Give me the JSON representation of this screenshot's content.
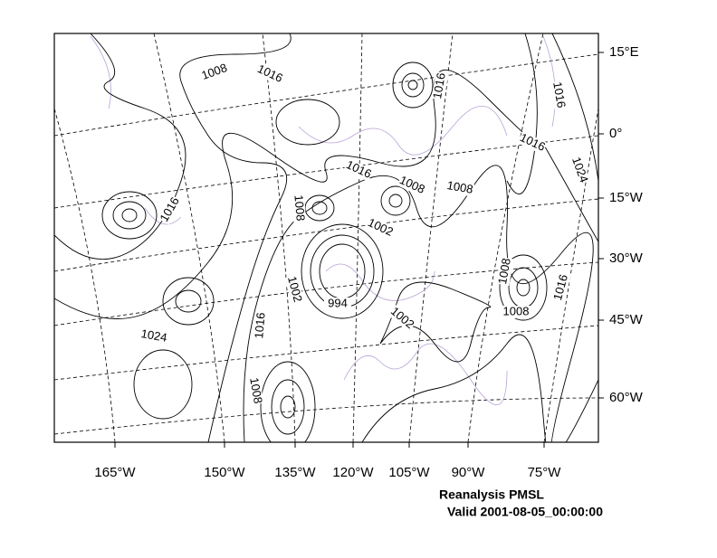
{
  "map": {
    "title": "Reanalysis PMSL",
    "subtitle": "Valid 2001-08-05_00:00:00",
    "right_labels": [
      "15°E",
      "0°",
      "15°W",
      "30°W",
      "45°W",
      "60°W"
    ],
    "bottom_labels": [
      "165°W",
      "150°W",
      "135°W",
      "120°W",
      "105°W",
      "90°W",
      "75°W"
    ],
    "contour_labels": [
      "1008",
      "1016",
      "1016",
      "1016",
      "1016",
      "1024",
      "1016",
      "1008",
      "1008",
      "1008",
      "1016",
      "1002",
      "1008",
      "1016",
      "1002",
      "994",
      "1002",
      "1008",
      "1016",
      "1024",
      "1008"
    ]
  }
}
